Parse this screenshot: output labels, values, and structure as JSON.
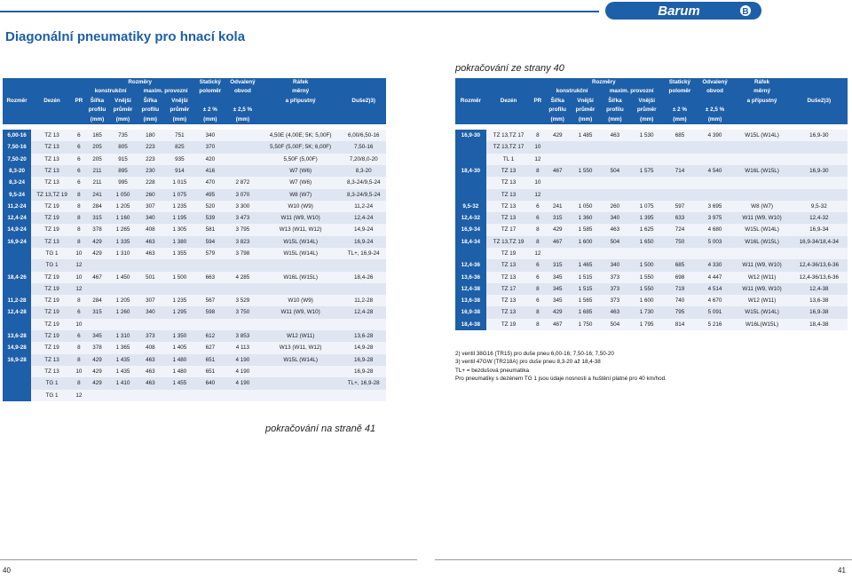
{
  "brand": "Barum",
  "title": "Diagonální pneumatiky pro hnací kola",
  "continued_from": "pokračování ze strany 40",
  "continued_on": "pokračování na straně 41",
  "header": {
    "c0": "Rozměr",
    "c1": "Dezén",
    "c2": "PR",
    "group_rozmery": "Rozměry",
    "group_konstrukcni": "konstrukční",
    "group_maxim": "maxim. provozní",
    "sirka": "Šířka",
    "profilu": "profilu",
    "vnejsi": "Vnější",
    "prumer": "průměr",
    "mm": "(mm)",
    "staticky": "Statický",
    "polomer": "poloměr",
    "odvaleny": "Odvalený",
    "obvod": "obvod",
    "pct2": "± 2 %",
    "pct25": "± 2,5 %",
    "rafek": "Ráfek",
    "merny": "měrný",
    "pripustny": "a přípustný",
    "duse": "Duše2)3)"
  },
  "left_rows": [
    [
      "6,00-16",
      "TZ 13",
      "6",
      "165",
      "735",
      "180",
      "751",
      "340",
      "",
      "4,50E (4,00E; 5K; 5,00F)",
      "6,00/6,50-16"
    ],
    [
      "7,50-16",
      "TZ 13",
      "6",
      "205",
      "805",
      "223",
      "825",
      "370",
      "",
      "5,50F (5,00F; 5K; 6,00F)",
      "7,50-16"
    ],
    [
      "7,50-20",
      "TZ 13",
      "6",
      "205",
      "915",
      "223",
      "935",
      "420",
      "",
      "5,50F (5,00F)",
      "7,20/8,0-20"
    ],
    [
      "8,3-20",
      "TZ 13",
      "6",
      "211",
      "895",
      "230",
      "914",
      "416",
      "",
      "W7 (W6)",
      "8,3-20"
    ],
    [
      "8,3-24",
      "TZ 13",
      "6",
      "211",
      "995",
      "228",
      "1 015",
      "470",
      "2 872",
      "W7 (W6)",
      "8,3-24/9,5-24"
    ],
    [
      "9,5-24",
      "TZ 13,TZ 19",
      "8",
      "241",
      "1 050",
      "260",
      "1 075",
      "495",
      "3 070",
      "W8 (W7)",
      "8,3-24/9,5-24"
    ],
    [
      "11,2-24",
      "TZ 19",
      "8",
      "284",
      "1 205",
      "307",
      "1 235",
      "520",
      "3 300",
      "W10 (W9)",
      "11,2-24"
    ],
    [
      "12,4-24",
      "TZ 19",
      "8",
      "315",
      "1 160",
      "340",
      "1 195",
      "539",
      "3 473",
      "W11 (W9, W10)",
      "12,4-24"
    ],
    [
      "14,9-24",
      "TZ 19",
      "8",
      "378",
      "1 265",
      "408",
      "1 305",
      "581",
      "3 795",
      "W13 (W11, W12)",
      "14,9-24"
    ],
    [
      "16,9-24",
      "TZ 13",
      "8",
      "429",
      "1 335",
      "463",
      "1 380",
      "594",
      "3 823",
      "W15L (W14L)",
      "16,9-24"
    ],
    [
      "",
      "TG 1",
      "10",
      "429",
      "1 310",
      "463",
      "1 355",
      "579",
      "3 798",
      "W15L (W14L)",
      "TL+, 16,9-24"
    ],
    [
      "",
      "TG 1",
      "12",
      "",
      "",
      "",
      "",
      "",
      "",
      "",
      ""
    ],
    [
      "18,4-26",
      "TZ 19",
      "10",
      "467",
      "1 450",
      "501",
      "1 500",
      "663",
      "4 285",
      "W16L (W15L)",
      "18,4-26"
    ],
    [
      "",
      "TZ 19",
      "12",
      "",
      "",
      "",
      "",
      "",
      "",
      "",
      ""
    ],
    [
      "11,2-28",
      "TZ 19",
      "8",
      "284",
      "1 205",
      "307",
      "1 235",
      "567",
      "3 529",
      "W10 (W9)",
      "11,2-28"
    ],
    [
      "12,4-28",
      "TZ 19",
      "6",
      "315",
      "1 260",
      "340",
      "1 295",
      "598",
      "3 750",
      "W11 (W9, W10)",
      "12,4-28"
    ],
    [
      "",
      "TZ 19",
      "10",
      "",
      "",
      "",
      "",
      "",
      "",
      "",
      ""
    ],
    [
      "13,6-28",
      "TZ 19",
      "6",
      "345",
      "1 310",
      "373",
      "1 350",
      "612",
      "3 853",
      "W12 (W11)",
      "13,6-28"
    ],
    [
      "14,9-28",
      "TZ 19",
      "8",
      "378",
      "1 365",
      "408",
      "1 405",
      "627",
      "4 113",
      "W13 (W11, W12)",
      "14,9-28"
    ],
    [
      "16,9-28",
      "TZ 13",
      "8",
      "429",
      "1 435",
      "463",
      "1 480",
      "651",
      "4 190",
      "W15L (W14L)",
      "16,9-28"
    ],
    [
      "",
      "TZ 13",
      "10",
      "429",
      "1 435",
      "463",
      "1 480",
      "651",
      "4 190",
      "",
      "16,9-28"
    ],
    [
      "",
      "TG 1",
      "8",
      "429",
      "1 410",
      "463",
      "1 455",
      "640",
      "4 190",
      "",
      "TL+, 16,9-28"
    ],
    [
      "",
      "TG 1",
      "12",
      "",
      "",
      "",
      "",
      "",
      "",
      "",
      ""
    ]
  ],
  "right_rows": [
    [
      "16,9-30",
      "TZ 13,TZ 17",
      "8",
      "429",
      "1 485",
      "463",
      "1 530",
      "685",
      "4 390",
      "W15L (W14L)",
      "16,9-30"
    ],
    [
      "",
      "TZ 13,TZ 17",
      "10",
      "",
      "",
      "",
      "",
      "",
      "",
      "",
      ""
    ],
    [
      "",
      "TL 1",
      "12",
      "",
      "",
      "",
      "",
      "",
      "",
      "",
      ""
    ],
    [
      "18,4-30",
      "TZ 13",
      "8",
      "467",
      "1 550",
      "504",
      "1 575",
      "714",
      "4 540",
      "W16L (W15L)",
      "16,9-30"
    ],
    [
      "",
      "TZ 13",
      "10",
      "",
      "",
      "",
      "",
      "",
      "",
      "",
      ""
    ],
    [
      "",
      "TZ 13",
      "12",
      "",
      "",
      "",
      "",
      "",
      "",
      "",
      ""
    ],
    [
      "9,5-32",
      "TZ 13",
      "6",
      "241",
      "1 050",
      "260",
      "1 075",
      "597",
      "3 695",
      "W8 (W7)",
      "9,5-32"
    ],
    [
      "12,4-32",
      "TZ 13",
      "6",
      "315",
      "1 360",
      "340",
      "1 395",
      "633",
      "3 975",
      "W11 (W9, W10)",
      "12,4-32"
    ],
    [
      "16,9-34",
      "TZ 17",
      "8",
      "429",
      "1 585",
      "463",
      "1 625",
      "724",
      "4 680",
      "W15L (W14L)",
      "16,9-34"
    ],
    [
      "18,4-34",
      "TZ 13,TZ 19",
      "8",
      "467",
      "1 600",
      "504",
      "1 650",
      "750",
      "5 003",
      "W16L (W15L)",
      "16,9-34/18,4-34"
    ],
    [
      "",
      "TZ 19",
      "12",
      "",
      "",
      "",
      "",
      "",
      "",
      "",
      ""
    ],
    [
      "12,4-36",
      "TZ 13",
      "6",
      "315",
      "1 465",
      "340",
      "1 500",
      "685",
      "4 330",
      "W11 (W9, W10)",
      "12,4-36/13,6-36"
    ],
    [
      "13,6-36",
      "TZ 13",
      "6",
      "345",
      "1 515",
      "373",
      "1 550",
      "698",
      "4 447",
      "W12 (W11)",
      "12,4-36/13,6-36"
    ],
    [
      "12,4-38",
      "TZ 17",
      "8",
      "345",
      "1 515",
      "373",
      "1 550",
      "719",
      "4 514",
      "W11 (W9, W10)",
      "12,4-38"
    ],
    [
      "13,6-38",
      "TZ 13",
      "6",
      "345",
      "1 565",
      "373",
      "1 600",
      "740",
      "4 670",
      "W12 (W11)",
      "13,6-38"
    ],
    [
      "16,9-38",
      "TZ 13",
      "8",
      "429",
      "1 685",
      "463",
      "1 730",
      "795",
      "5 091",
      "W15L (W14L)",
      "16,9-38"
    ],
    [
      "18,4-38",
      "TZ 19",
      "8",
      "467",
      "1 750",
      "504",
      "1 795",
      "814",
      "5 216",
      "W16L(W15L)",
      "18,4-38"
    ]
  ],
  "notes": [
    "2) ventil 38G16 (TR15) pro duše pneu 6,00-16; 7,50-16; 7,50-20",
    "3) ventil 47GW (TR218A) pro duše pneu 8,3-20 až 18,4-38",
    "TL+ = bezdušová pneumatika",
    "Pro pneumatiky s dezénem TG 1 jsou údaje nosnosti a huštění platné pro 40 km/hod."
  ],
  "page_left": "40",
  "page_right": "41",
  "colors": {
    "accent": "#1d5fa8",
    "row_odd": "#dfe6f2",
    "row_even": "#f0f3f9"
  }
}
